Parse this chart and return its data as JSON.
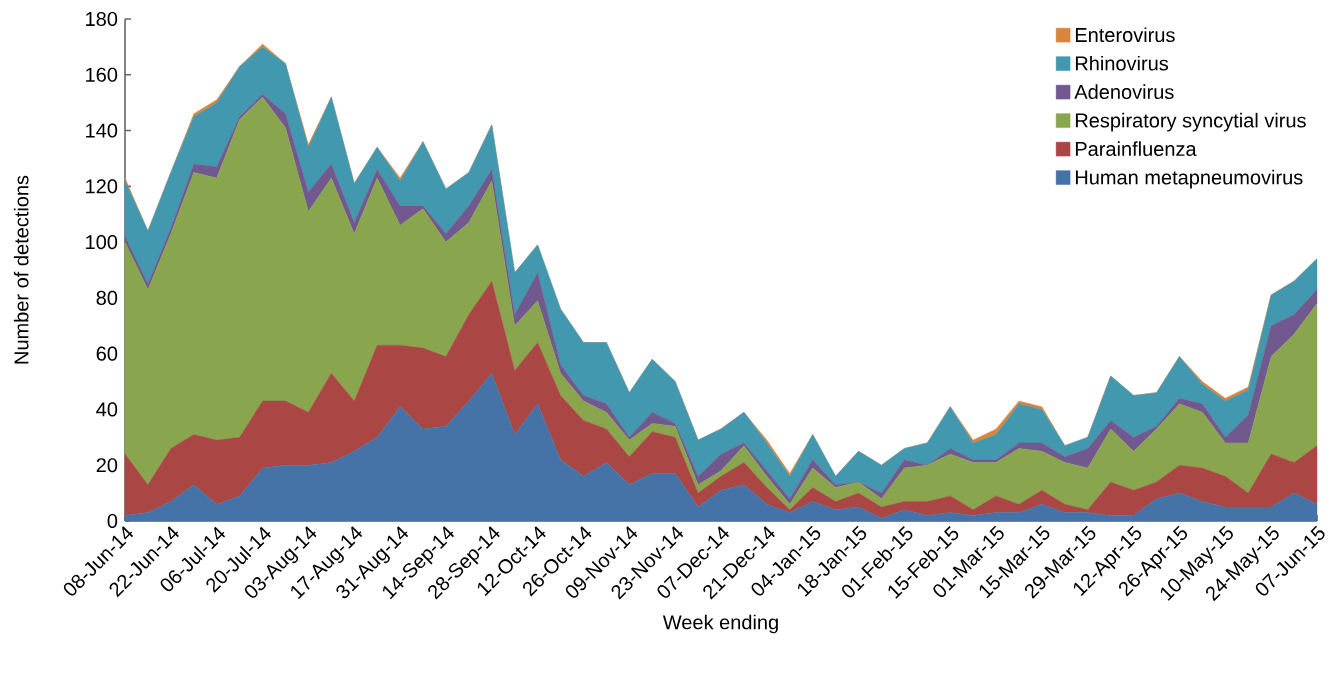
{
  "chart_data": {
    "type": "area",
    "stacked": true,
    "xlabel": "Week ending",
    "ylabel": "Number of detections",
    "categories": [
      "08-Jun-14",
      null,
      "22-Jun-14",
      null,
      "06-Jul-14",
      null,
      "20-Jul-14",
      null,
      "03-Aug-14",
      null,
      "17-Aug-14",
      null,
      "31-Aug-14",
      null,
      "14-Sep-14",
      null,
      "28-Sep-14",
      null,
      "12-Oct-14",
      null,
      "26-Oct-14",
      null,
      "09-Nov-14",
      null,
      "23-Nov-14",
      null,
      "07-Dec-14",
      null,
      "21-Dec-14",
      null,
      "04-Jan-15",
      null,
      "18-Jan-15",
      null,
      "01-Feb-15",
      null,
      "15-Feb-15",
      null,
      "01-Mar-15",
      null,
      "15-Mar-15",
      null,
      "29-Mar-15",
      null,
      "12-Apr-15",
      null,
      "26-Apr-15",
      null,
      "10-May-15",
      null,
      "24-May-15",
      null,
      "07-Jun-15"
    ],
    "ylim": [
      0,
      180
    ],
    "yticks": [
      0,
      20,
      40,
      60,
      80,
      100,
      120,
      140,
      160,
      180
    ],
    "legend": "top right",
    "series": [
      {
        "name": "Human metapneumovirus",
        "color": "#4572a7",
        "values": [
          2,
          3,
          7,
          13,
          6,
          9,
          19,
          20,
          20,
          21,
          25,
          30,
          41,
          33,
          34,
          43,
          53,
          31,
          42,
          22,
          16,
          21,
          13,
          17,
          17,
          5,
          11,
          13,
          6,
          3,
          7,
          4,
          5,
          1,
          4,
          2,
          3,
          2,
          3,
          3,
          6,
          3,
          3,
          2,
          2,
          8,
          10,
          7,
          5,
          5,
          5,
          10,
          6
        ]
      },
      {
        "name": "Parainfluenza",
        "color": "#aa4643",
        "values": [
          22,
          10,
          19,
          18,
          23,
          21,
          24,
          23,
          19,
          32,
          18,
          33,
          22,
          29,
          25,
          31,
          33,
          23,
          22,
          23,
          20,
          12,
          10,
          15,
          13,
          5,
          5,
          8,
          6,
          1,
          5,
          3,
          5,
          4,
          3,
          5,
          6,
          2,
          6,
          3,
          5,
          3,
          1,
          12,
          9,
          6,
          10,
          12,
          11,
          5,
          19,
          11,
          21
        ]
      },
      {
        "name": "Respiratory syncytial virus",
        "color": "#89a54e",
        "values": [
          76,
          70,
          77,
          94,
          94,
          114,
          109,
          98,
          72,
          70,
          60,
          60,
          43,
          50,
          41,
          33,
          36,
          16,
          15,
          8,
          7,
          6,
          6,
          3,
          4,
          3,
          2,
          6,
          4,
          2,
          7,
          5,
          4,
          3,
          12,
          13,
          15,
          17,
          12,
          20,
          14,
          15,
          15,
          19,
          14,
          19,
          22,
          20,
          12,
          18,
          35,
          46,
          51
        ]
      },
      {
        "name": "Adenovirus",
        "color": "#71588f",
        "values": [
          2,
          2,
          2,
          3,
          4,
          1,
          1,
          5,
          7,
          5,
          4,
          3,
          7,
          1,
          3,
          6,
          4,
          4,
          10,
          3,
          2,
          3,
          1,
          4,
          1,
          3,
          6,
          1,
          2,
          2,
          3,
          1,
          0,
          2,
          3,
          0,
          2,
          1,
          1,
          2,
          3,
          2,
          7,
          3,
          5,
          1,
          2,
          3,
          2,
          10,
          11,
          7,
          5
        ]
      },
      {
        "name": "Rhinovirus",
        "color": "#4198af",
        "values": [
          20,
          19,
          20,
          17,
          23,
          18,
          17,
          18,
          16,
          24,
          14,
          8,
          9,
          23,
          16,
          12,
          16,
          15,
          10,
          20,
          19,
          22,
          16,
          19,
          15,
          13,
          9,
          11,
          10,
          8,
          9,
          3,
          11,
          10,
          4,
          8,
          15,
          6,
          9,
          14,
          12,
          4,
          4,
          16,
          15,
          12,
          15,
          7,
          13,
          9,
          11,
          12,
          11
        ]
      },
      {
        "name": "Enterovirus",
        "color": "#db843d",
        "values": [
          1,
          0,
          0,
          1,
          1,
          0,
          1,
          0,
          1,
          0,
          0,
          0,
          1,
          0,
          0,
          0,
          0,
          0,
          0,
          0,
          0,
          0,
          0,
          0,
          0,
          0,
          0,
          0,
          1,
          1,
          0,
          0,
          0,
          0,
          0,
          0,
          0,
          1,
          2,
          1,
          1,
          0,
          0,
          0,
          0,
          0,
          0,
          1,
          1,
          1,
          0,
          0,
          0
        ]
      }
    ]
  }
}
